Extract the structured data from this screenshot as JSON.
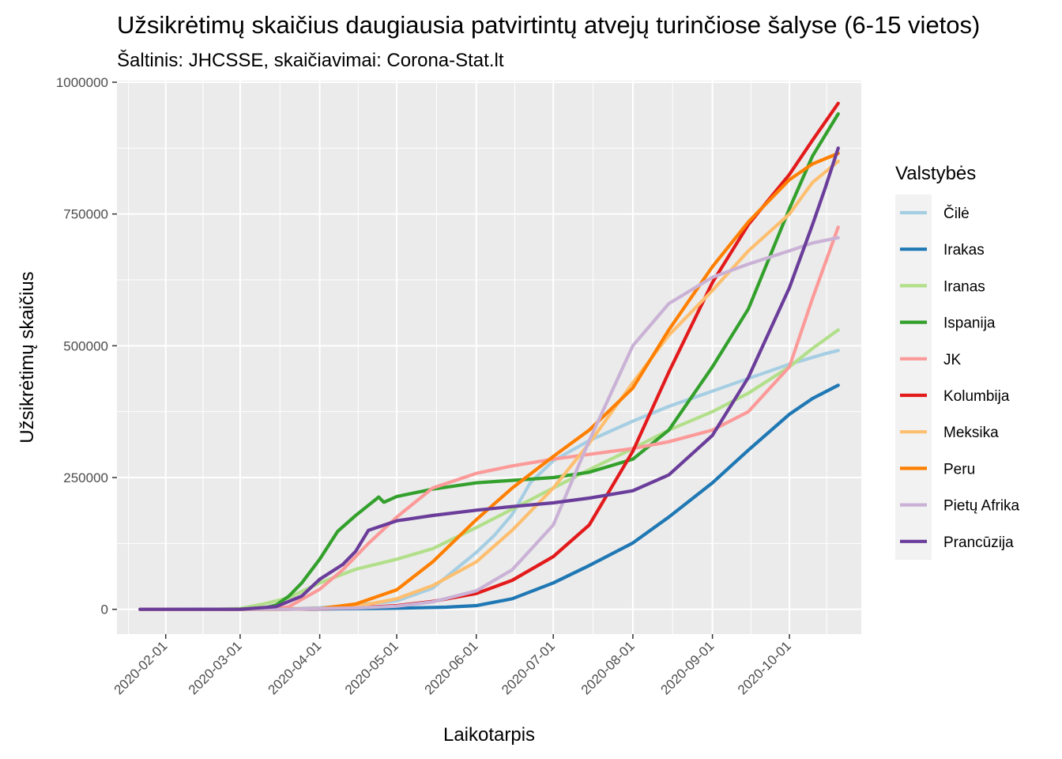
{
  "chart_data": {
    "type": "line",
    "title": "Užsikrėtimų skaičius daugiausia patvirtintų atvejų turinčiose šalyse (6-15 vietos)",
    "subtitle": "Šaltinis: JHCSSE, skaičiavimai: Corona-Stat.lt",
    "xlabel": "Laikotarpis",
    "ylabel": "Užsikrėtimų skaičius",
    "xlim": [
      "2020-01-13",
      "2020-10-29"
    ],
    "ylim": [
      -47000,
      1003000
    ],
    "x_ticks": [
      "2020-02-01",
      "2020-03-01",
      "2020-04-01",
      "2020-05-01",
      "2020-06-01",
      "2020-07-01",
      "2020-08-01",
      "2020-09-01",
      "2020-10-01"
    ],
    "y_ticks": [
      0,
      250000,
      500000,
      750000,
      1000000
    ],
    "y_tick_labels": [
      "0",
      "250000",
      "500000",
      "750000",
      "1000000"
    ],
    "grid": true,
    "legend": {
      "title": "Valstybės",
      "position": "right"
    },
    "series": [
      {
        "name": "Čilė",
        "color": "#A6CEE3",
        "points": [
          [
            "2020-01-22",
            0
          ],
          [
            "2020-03-01",
            0
          ],
          [
            "2020-03-15",
            100
          ],
          [
            "2020-04-01",
            3000
          ],
          [
            "2020-04-15",
            8000
          ],
          [
            "2020-05-01",
            16000
          ],
          [
            "2020-05-15",
            40000
          ],
          [
            "2020-05-25",
            80000
          ],
          [
            "2020-06-01",
            108000
          ],
          [
            "2020-06-08",
            140000
          ],
          [
            "2020-06-15",
            180000
          ],
          [
            "2020-06-22",
            240000
          ],
          [
            "2020-07-01",
            282000
          ],
          [
            "2020-07-15",
            320000
          ],
          [
            "2020-08-01",
            357000
          ],
          [
            "2020-08-15",
            385000
          ],
          [
            "2020-09-01",
            414000
          ],
          [
            "2020-09-15",
            438000
          ],
          [
            "2020-10-01",
            465000
          ],
          [
            "2020-10-15",
            485000
          ],
          [
            "2020-10-20",
            491000
          ]
        ]
      },
      {
        "name": "Irakas",
        "color": "#1F78B4",
        "points": [
          [
            "2020-01-22",
            0
          ],
          [
            "2020-03-01",
            0
          ],
          [
            "2020-04-01",
            500
          ],
          [
            "2020-05-01",
            2000
          ],
          [
            "2020-05-20",
            4000
          ],
          [
            "2020-06-01",
            7000
          ],
          [
            "2020-06-15",
            20000
          ],
          [
            "2020-07-01",
            50000
          ],
          [
            "2020-07-15",
            83000
          ],
          [
            "2020-08-01",
            126000
          ],
          [
            "2020-08-15",
            175000
          ],
          [
            "2020-09-01",
            240000
          ],
          [
            "2020-09-15",
            302000
          ],
          [
            "2020-10-01",
            370000
          ],
          [
            "2020-10-10",
            400000
          ],
          [
            "2020-10-20",
            425000
          ]
        ]
      },
      {
        "name": "Iranas",
        "color": "#B2DF8A",
        "points": [
          [
            "2020-01-22",
            0
          ],
          [
            "2020-02-20",
            0
          ],
          [
            "2020-03-01",
            1500
          ],
          [
            "2020-03-10",
            10000
          ],
          [
            "2020-03-20",
            22000
          ],
          [
            "2020-04-01",
            50000
          ],
          [
            "2020-04-15",
            76000
          ],
          [
            "2020-05-01",
            95000
          ],
          [
            "2020-05-15",
            115000
          ],
          [
            "2020-06-01",
            155000
          ],
          [
            "2020-06-15",
            190000
          ],
          [
            "2020-07-01",
            230000
          ],
          [
            "2020-07-15",
            265000
          ],
          [
            "2020-08-01",
            305000
          ],
          [
            "2020-08-15",
            340000
          ],
          [
            "2020-09-01",
            375000
          ],
          [
            "2020-09-15",
            410000
          ],
          [
            "2020-10-01",
            460000
          ],
          [
            "2020-10-10",
            495000
          ],
          [
            "2020-10-20",
            530000
          ]
        ]
      },
      {
        "name": "Ispanija",
        "color": "#33A02C",
        "points": [
          [
            "2020-01-22",
            0
          ],
          [
            "2020-03-01",
            100
          ],
          [
            "2020-03-10",
            2000
          ],
          [
            "2020-03-15",
            8000
          ],
          [
            "2020-03-20",
            25000
          ],
          [
            "2020-03-25",
            50000
          ],
          [
            "2020-04-01",
            95000
          ],
          [
            "2020-04-08",
            148000
          ],
          [
            "2020-04-15",
            178000
          ],
          [
            "2020-04-24",
            213000
          ],
          [
            "2020-04-26",
            203000
          ],
          [
            "2020-05-01",
            214000
          ],
          [
            "2020-05-15",
            228000
          ],
          [
            "2020-06-01",
            240000
          ],
          [
            "2020-07-01",
            250000
          ],
          [
            "2020-07-15",
            260000
          ],
          [
            "2020-08-01",
            285000
          ],
          [
            "2020-08-15",
            340000
          ],
          [
            "2020-09-01",
            460000
          ],
          [
            "2020-09-15",
            570000
          ],
          [
            "2020-10-01",
            760000
          ],
          [
            "2020-10-10",
            860000
          ],
          [
            "2020-10-20",
            940000
          ]
        ]
      },
      {
        "name": "JK",
        "color": "#FB9A99",
        "points": [
          [
            "2020-01-22",
            0
          ],
          [
            "2020-03-01",
            0
          ],
          [
            "2020-03-15",
            1500
          ],
          [
            "2020-03-20",
            5000
          ],
          [
            "2020-04-01",
            38000
          ],
          [
            "2020-04-10",
            75000
          ],
          [
            "2020-04-20",
            125000
          ],
          [
            "2020-05-01",
            175000
          ],
          [
            "2020-05-15",
            230000
          ],
          [
            "2020-06-01",
            258000
          ],
          [
            "2020-06-15",
            272000
          ],
          [
            "2020-07-01",
            285000
          ],
          [
            "2020-07-15",
            294000
          ],
          [
            "2020-08-01",
            305000
          ],
          [
            "2020-08-15",
            318000
          ],
          [
            "2020-09-01",
            340000
          ],
          [
            "2020-09-15",
            375000
          ],
          [
            "2020-10-01",
            460000
          ],
          [
            "2020-10-10",
            590000
          ],
          [
            "2020-10-20",
            725000
          ]
        ]
      },
      {
        "name": "Kolumbija",
        "color": "#E31A1C",
        "points": [
          [
            "2020-01-22",
            0
          ],
          [
            "2020-03-01",
            0
          ],
          [
            "2020-03-20",
            200
          ],
          [
            "2020-04-01",
            1000
          ],
          [
            "2020-04-15",
            3000
          ],
          [
            "2020-05-01",
            7000
          ],
          [
            "2020-05-15",
            15000
          ],
          [
            "2020-06-01",
            30000
          ],
          [
            "2020-06-15",
            55000
          ],
          [
            "2020-07-01",
            100000
          ],
          [
            "2020-07-15",
            160000
          ],
          [
            "2020-08-01",
            300000
          ],
          [
            "2020-08-15",
            450000
          ],
          [
            "2020-09-01",
            620000
          ],
          [
            "2020-09-15",
            730000
          ],
          [
            "2020-10-01",
            825000
          ],
          [
            "2020-10-10",
            890000
          ],
          [
            "2020-10-20",
            960000
          ]
        ]
      },
      {
        "name": "Meksika",
        "color": "#FDBF6F",
        "points": [
          [
            "2020-01-22",
            0
          ],
          [
            "2020-03-01",
            0
          ],
          [
            "2020-03-20",
            200
          ],
          [
            "2020-04-01",
            1500
          ],
          [
            "2020-04-15",
            5000
          ],
          [
            "2020-05-01",
            20000
          ],
          [
            "2020-05-15",
            45000
          ],
          [
            "2020-06-01",
            90000
          ],
          [
            "2020-06-15",
            150000
          ],
          [
            "2020-07-01",
            230000
          ],
          [
            "2020-07-15",
            315000
          ],
          [
            "2020-08-01",
            430000
          ],
          [
            "2020-08-15",
            520000
          ],
          [
            "2020-09-01",
            605000
          ],
          [
            "2020-09-15",
            680000
          ],
          [
            "2020-10-01",
            750000
          ],
          [
            "2020-10-10",
            810000
          ],
          [
            "2020-10-20",
            850000
          ]
        ]
      },
      {
        "name": "Peru",
        "color": "#FF7F00",
        "points": [
          [
            "2020-01-22",
            0
          ],
          [
            "2020-03-01",
            0
          ],
          [
            "2020-03-15",
            100
          ],
          [
            "2020-04-01",
            1500
          ],
          [
            "2020-04-15",
            10000
          ],
          [
            "2020-05-01",
            37000
          ],
          [
            "2020-05-15",
            90000
          ],
          [
            "2020-06-01",
            170000
          ],
          [
            "2020-06-15",
            230000
          ],
          [
            "2020-07-01",
            290000
          ],
          [
            "2020-07-15",
            340000
          ],
          [
            "2020-08-01",
            420000
          ],
          [
            "2020-08-15",
            530000
          ],
          [
            "2020-09-01",
            650000
          ],
          [
            "2020-09-15",
            735000
          ],
          [
            "2020-10-01",
            815000
          ],
          [
            "2020-10-10",
            845000
          ],
          [
            "2020-10-20",
            865000
          ]
        ]
      },
      {
        "name": "Pietų Afrika",
        "color": "#CAB2D6",
        "points": [
          [
            "2020-01-22",
            0
          ],
          [
            "2020-03-01",
            0
          ],
          [
            "2020-03-20",
            200
          ],
          [
            "2020-04-01",
            1500
          ],
          [
            "2020-04-15",
            2500
          ],
          [
            "2020-05-01",
            6000
          ],
          [
            "2020-05-15",
            14000
          ],
          [
            "2020-06-01",
            35000
          ],
          [
            "2020-06-15",
            75000
          ],
          [
            "2020-07-01",
            160000
          ],
          [
            "2020-07-15",
            320000
          ],
          [
            "2020-08-01",
            500000
          ],
          [
            "2020-08-15",
            580000
          ],
          [
            "2020-09-01",
            630000
          ],
          [
            "2020-09-15",
            655000
          ],
          [
            "2020-10-01",
            680000
          ],
          [
            "2020-10-10",
            695000
          ],
          [
            "2020-10-20",
            705000
          ]
        ]
      },
      {
        "name": "Prancūzija",
        "color": "#6A3D9A",
        "points": [
          [
            "2020-01-22",
            0
          ],
          [
            "2020-03-01",
            100
          ],
          [
            "2020-03-15",
            5000
          ],
          [
            "2020-03-25",
            25000
          ],
          [
            "2020-04-01",
            57000
          ],
          [
            "2020-04-10",
            85000
          ],
          [
            "2020-04-15",
            110000
          ],
          [
            "2020-04-20",
            150000
          ],
          [
            "2020-05-01",
            168000
          ],
          [
            "2020-05-15",
            178000
          ],
          [
            "2020-06-01",
            188000
          ],
          [
            "2020-06-15",
            195000
          ],
          [
            "2020-07-01",
            202000
          ],
          [
            "2020-07-15",
            211000
          ],
          [
            "2020-08-01",
            225000
          ],
          [
            "2020-08-15",
            255000
          ],
          [
            "2020-09-01",
            330000
          ],
          [
            "2020-09-15",
            440000
          ],
          [
            "2020-10-01",
            610000
          ],
          [
            "2020-10-10",
            730000
          ],
          [
            "2020-10-15",
            800000
          ],
          [
            "2020-10-20",
            875000
          ]
        ]
      }
    ]
  }
}
